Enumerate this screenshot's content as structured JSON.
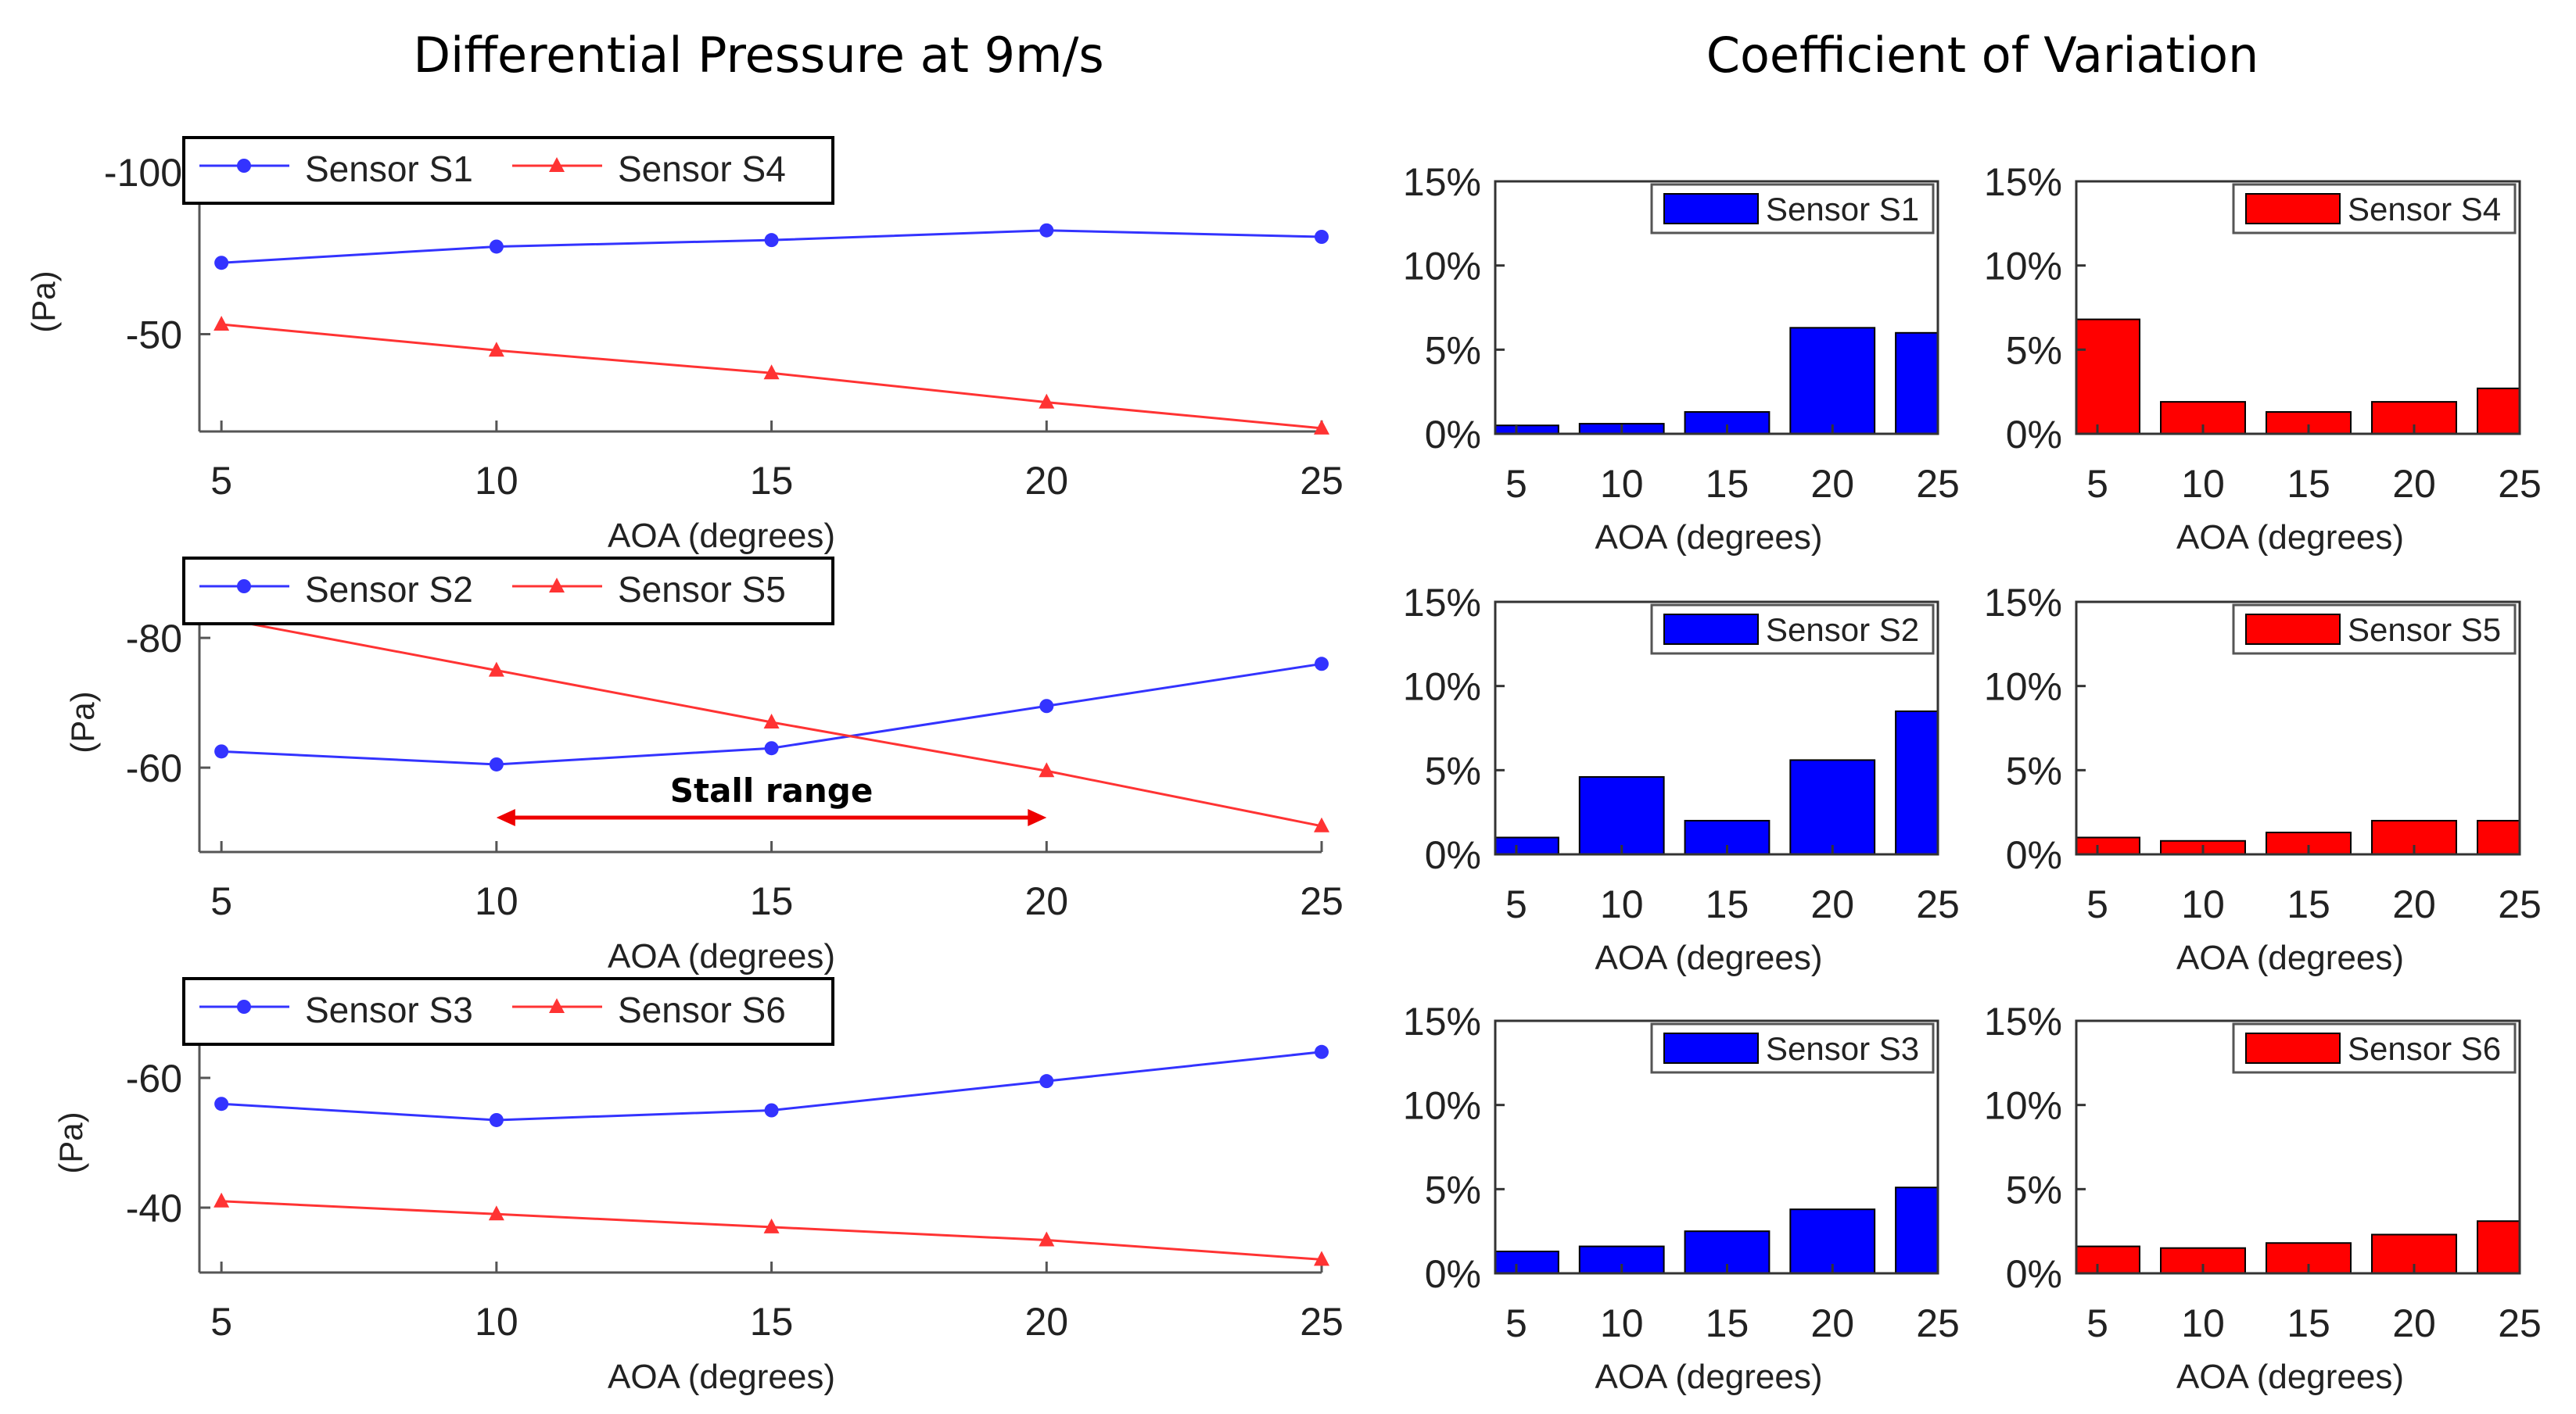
{
  "colors": {
    "s_blue": "#0000ff",
    "s_red": "#ff0000",
    "line_blue": "#3333ff",
    "line_red": "#ff3333"
  },
  "titles": {
    "left": "Differential Pressure at 9m/s",
    "right": "Coefficient of Variation"
  },
  "x_label": "AOA (degrees)",
  "chart_data": [
    {
      "id": "line1",
      "type": "line",
      "ylabel": "(Pa)",
      "xlabel": "AOA (degrees)",
      "x": [
        5,
        10,
        15,
        20,
        25
      ],
      "xlim": [
        4.6,
        25
      ],
      "ylim": [
        -100,
        -20
      ],
      "y_reversed": true,
      "xticks": [
        5,
        10,
        15,
        20,
        25
      ],
      "yticks": [
        -100,
        -50
      ],
      "ytick_labels": [
        "-100",
        "-50"
      ],
      "series": [
        {
          "name": "Sensor S1",
          "color": "#3333ff",
          "marker": "circle",
          "values": [
            -72,
            -77,
            -79,
            -82,
            -80
          ]
        },
        {
          "name": "Sensor S4",
          "color": "#ff3333",
          "marker": "triangle",
          "values": [
            -53,
            -45,
            -38,
            -29,
            -21
          ]
        }
      ]
    },
    {
      "id": "line2",
      "type": "line",
      "ylabel": "(Pa)",
      "xlabel": "AOA (degrees)",
      "x": [
        5,
        10,
        15,
        20,
        25
      ],
      "xlim": [
        4.6,
        25
      ],
      "ylim": [
        -87,
        -47
      ],
      "y_reversed": true,
      "xticks": [
        5,
        10,
        15,
        20,
        25
      ],
      "yticks": [
        -80,
        -60
      ],
      "ytick_labels": [
        "-80",
        "-60"
      ],
      "annotation": {
        "text": "Stall range",
        "from": 10,
        "to": 20
      },
      "series": [
        {
          "name": "Sensor S2",
          "color": "#3333ff",
          "marker": "circle",
          "values": [
            -62.5,
            -60.5,
            -63,
            -69.5,
            -76
          ]
        },
        {
          "name": "Sensor S5",
          "color": "#ff3333",
          "marker": "triangle",
          "values": [
            -83,
            -75,
            -67,
            -59.5,
            -51
          ]
        }
      ]
    },
    {
      "id": "line3",
      "type": "line",
      "ylabel": "(Pa)",
      "xlabel": "AOA (degrees)",
      "x": [
        5,
        10,
        15,
        20,
        25
      ],
      "xlim": [
        4.6,
        25
      ],
      "ylim": [
        -70,
        -30
      ],
      "y_reversed": true,
      "xticks": [
        5,
        10,
        15,
        20,
        25
      ],
      "yticks": [
        -60,
        -40
      ],
      "ytick_labels": [
        "-60",
        "-40"
      ],
      "series": [
        {
          "name": "Sensor S3",
          "color": "#3333ff",
          "marker": "circle",
          "values": [
            -56,
            -53.5,
            -55,
            -59.5,
            -64
          ]
        },
        {
          "name": "Sensor S6",
          "color": "#ff3333",
          "marker": "triangle",
          "values": [
            -41,
            -39,
            -37,
            -35,
            -32
          ]
        }
      ]
    },
    {
      "id": "bar_s1",
      "type": "bar",
      "series_name": "Sensor S1",
      "color": "#0000ff",
      "x": [
        5,
        10,
        15,
        20,
        25
      ],
      "values": [
        0.5,
        0.6,
        1.3,
        6.3,
        6.0
      ],
      "ylim": [
        0,
        15
      ],
      "yticks": [
        0,
        5,
        10,
        15
      ],
      "ytick_labels": [
        "0%",
        "5%",
        "10%",
        "15%"
      ],
      "xlabel": "AOA (degrees)"
    },
    {
      "id": "bar_s4",
      "type": "bar",
      "series_name": "Sensor S4",
      "color": "#ff0000",
      "x": [
        5,
        10,
        15,
        20,
        25
      ],
      "values": [
        6.8,
        1.9,
        1.3,
        1.9,
        2.7
      ],
      "ylim": [
        0,
        15
      ],
      "yticks": [
        0,
        5,
        10,
        15
      ],
      "ytick_labels": [
        "0%",
        "5%",
        "10%",
        "15%"
      ],
      "xlabel": "AOA (degrees)"
    },
    {
      "id": "bar_s2",
      "type": "bar",
      "series_name": "Sensor S2",
      "color": "#0000ff",
      "x": [
        5,
        10,
        15,
        20,
        25
      ],
      "values": [
        1.0,
        4.6,
        2.0,
        5.6,
        8.5
      ],
      "ylim": [
        0,
        15
      ],
      "yticks": [
        0,
        5,
        10,
        15
      ],
      "ytick_labels": [
        "0%",
        "5%",
        "10%",
        "15%"
      ],
      "xlabel": "AOA (degrees)"
    },
    {
      "id": "bar_s5",
      "type": "bar",
      "series_name": "Sensor S5",
      "color": "#ff0000",
      "x": [
        5,
        10,
        15,
        20,
        25
      ],
      "values": [
        1.0,
        0.8,
        1.3,
        2.0,
        2.0
      ],
      "ylim": [
        0,
        15
      ],
      "yticks": [
        0,
        5,
        10,
        15
      ],
      "ytick_labels": [
        "0%",
        "5%",
        "10%",
        "15%"
      ],
      "xlabel": "AOA (degrees)"
    },
    {
      "id": "bar_s3",
      "type": "bar",
      "series_name": "Sensor S3",
      "color": "#0000ff",
      "x": [
        5,
        10,
        15,
        20,
        25
      ],
      "values": [
        1.3,
        1.6,
        2.5,
        3.8,
        5.1
      ],
      "ylim": [
        0,
        15
      ],
      "yticks": [
        0,
        5,
        10,
        15
      ],
      "ytick_labels": [
        "0%",
        "5%",
        "10%",
        "15%"
      ],
      "xlabel": "AOA (degrees)"
    },
    {
      "id": "bar_s6",
      "type": "bar",
      "series_name": "Sensor S6",
      "color": "#ff0000",
      "x": [
        5,
        10,
        15,
        20,
        25
      ],
      "values": [
        1.6,
        1.5,
        1.8,
        2.3,
        3.1
      ],
      "ylim": [
        0,
        15
      ],
      "yticks": [
        0,
        5,
        10,
        15
      ],
      "ytick_labels": [
        "0%",
        "5%",
        "10%",
        "15%"
      ],
      "xlabel": "AOA (degrees)"
    }
  ]
}
